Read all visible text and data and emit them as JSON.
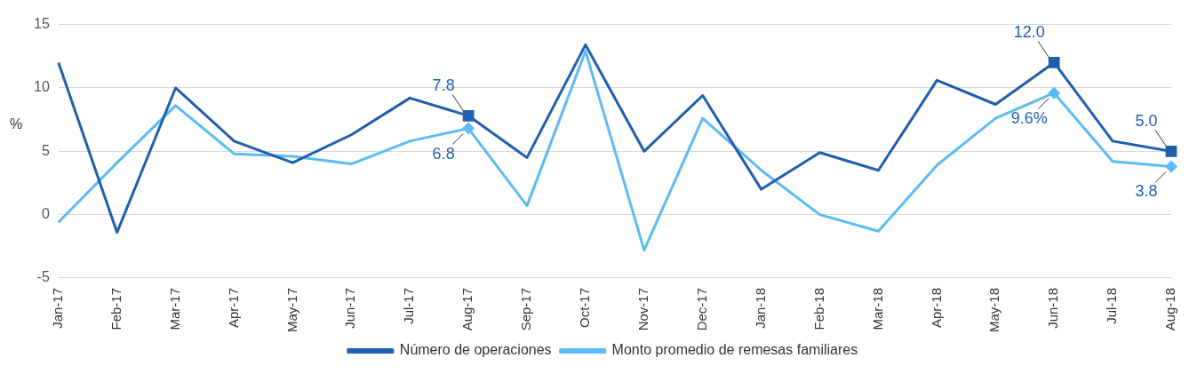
{
  "chart_data": {
    "type": "line",
    "ylabel": "%",
    "categories": [
      "Jan-17",
      "Feb-17",
      "Mar-17",
      "Apr-17",
      "May-17",
      "Jun-17",
      "Jul-17",
      "Aug-17",
      "Sep-17",
      "Oct-17",
      "Nov-17",
      "Dec-17",
      "Jan-18",
      "Feb-18",
      "Mar-18",
      "Apr-18",
      "May-18",
      "Jun-18",
      "Jul-18",
      "Aug-18"
    ],
    "series": [
      {
        "name": "Número de operaciones",
        "color": "#1f5fad",
        "values": [
          12.0,
          -1.4,
          10.0,
          5.8,
          4.1,
          6.3,
          9.2,
          7.8,
          4.5,
          13.4,
          5.0,
          9.4,
          2.0,
          4.9,
          3.5,
          10.6,
          8.7,
          12.0,
          5.8,
          5.0
        ]
      },
      {
        "name": "Monto promedio de remesas familiares",
        "color": "#5bbcf5",
        "values": [
          -0.6,
          4.1,
          8.6,
          4.8,
          4.6,
          4.0,
          5.8,
          6.8,
          0.7,
          12.9,
          -2.8,
          7.6,
          3.5,
          0.0,
          -1.3,
          3.9,
          7.6,
          9.6,
          4.2,
          3.8
        ]
      },
      {
        "type": "scatter",
        "color": "#1f5fad",
        "marker": "square",
        "x": [
          "Aug-17",
          "Jun-18",
          "Aug-18"
        ],
        "values": [
          7.8,
          12.0,
          5.0
        ]
      },
      {
        "type": "scatter",
        "color": "#5bbcf5",
        "marker": "diamond",
        "x": [
          "Aug-17",
          "Jun-18",
          "Aug-18"
        ],
        "values": [
          6.8,
          9.6,
          3.8
        ]
      }
    ],
    "annotations": [
      {
        "text": "7.8",
        "x": "Aug-17",
        "y": 7.8
      },
      {
        "text": "6.8",
        "x": "Aug-17",
        "y": 6.8
      },
      {
        "text": "12.0",
        "x": "Jun-18",
        "y": 12.0
      },
      {
        "text": "9.6%",
        "x": "Jun-18",
        "y": 9.6
      },
      {
        "text": "5.0",
        "x": "Aug-18",
        "y": 5.0
      },
      {
        "text": "3.8",
        "x": "Aug-18",
        "y": 3.8
      }
    ],
    "ylim": [
      -5,
      15
    ],
    "yticks": [
      -5,
      0,
      5,
      10,
      15
    ],
    "grid": "y",
    "legend": "bottom",
    "line_style": "solid"
  }
}
